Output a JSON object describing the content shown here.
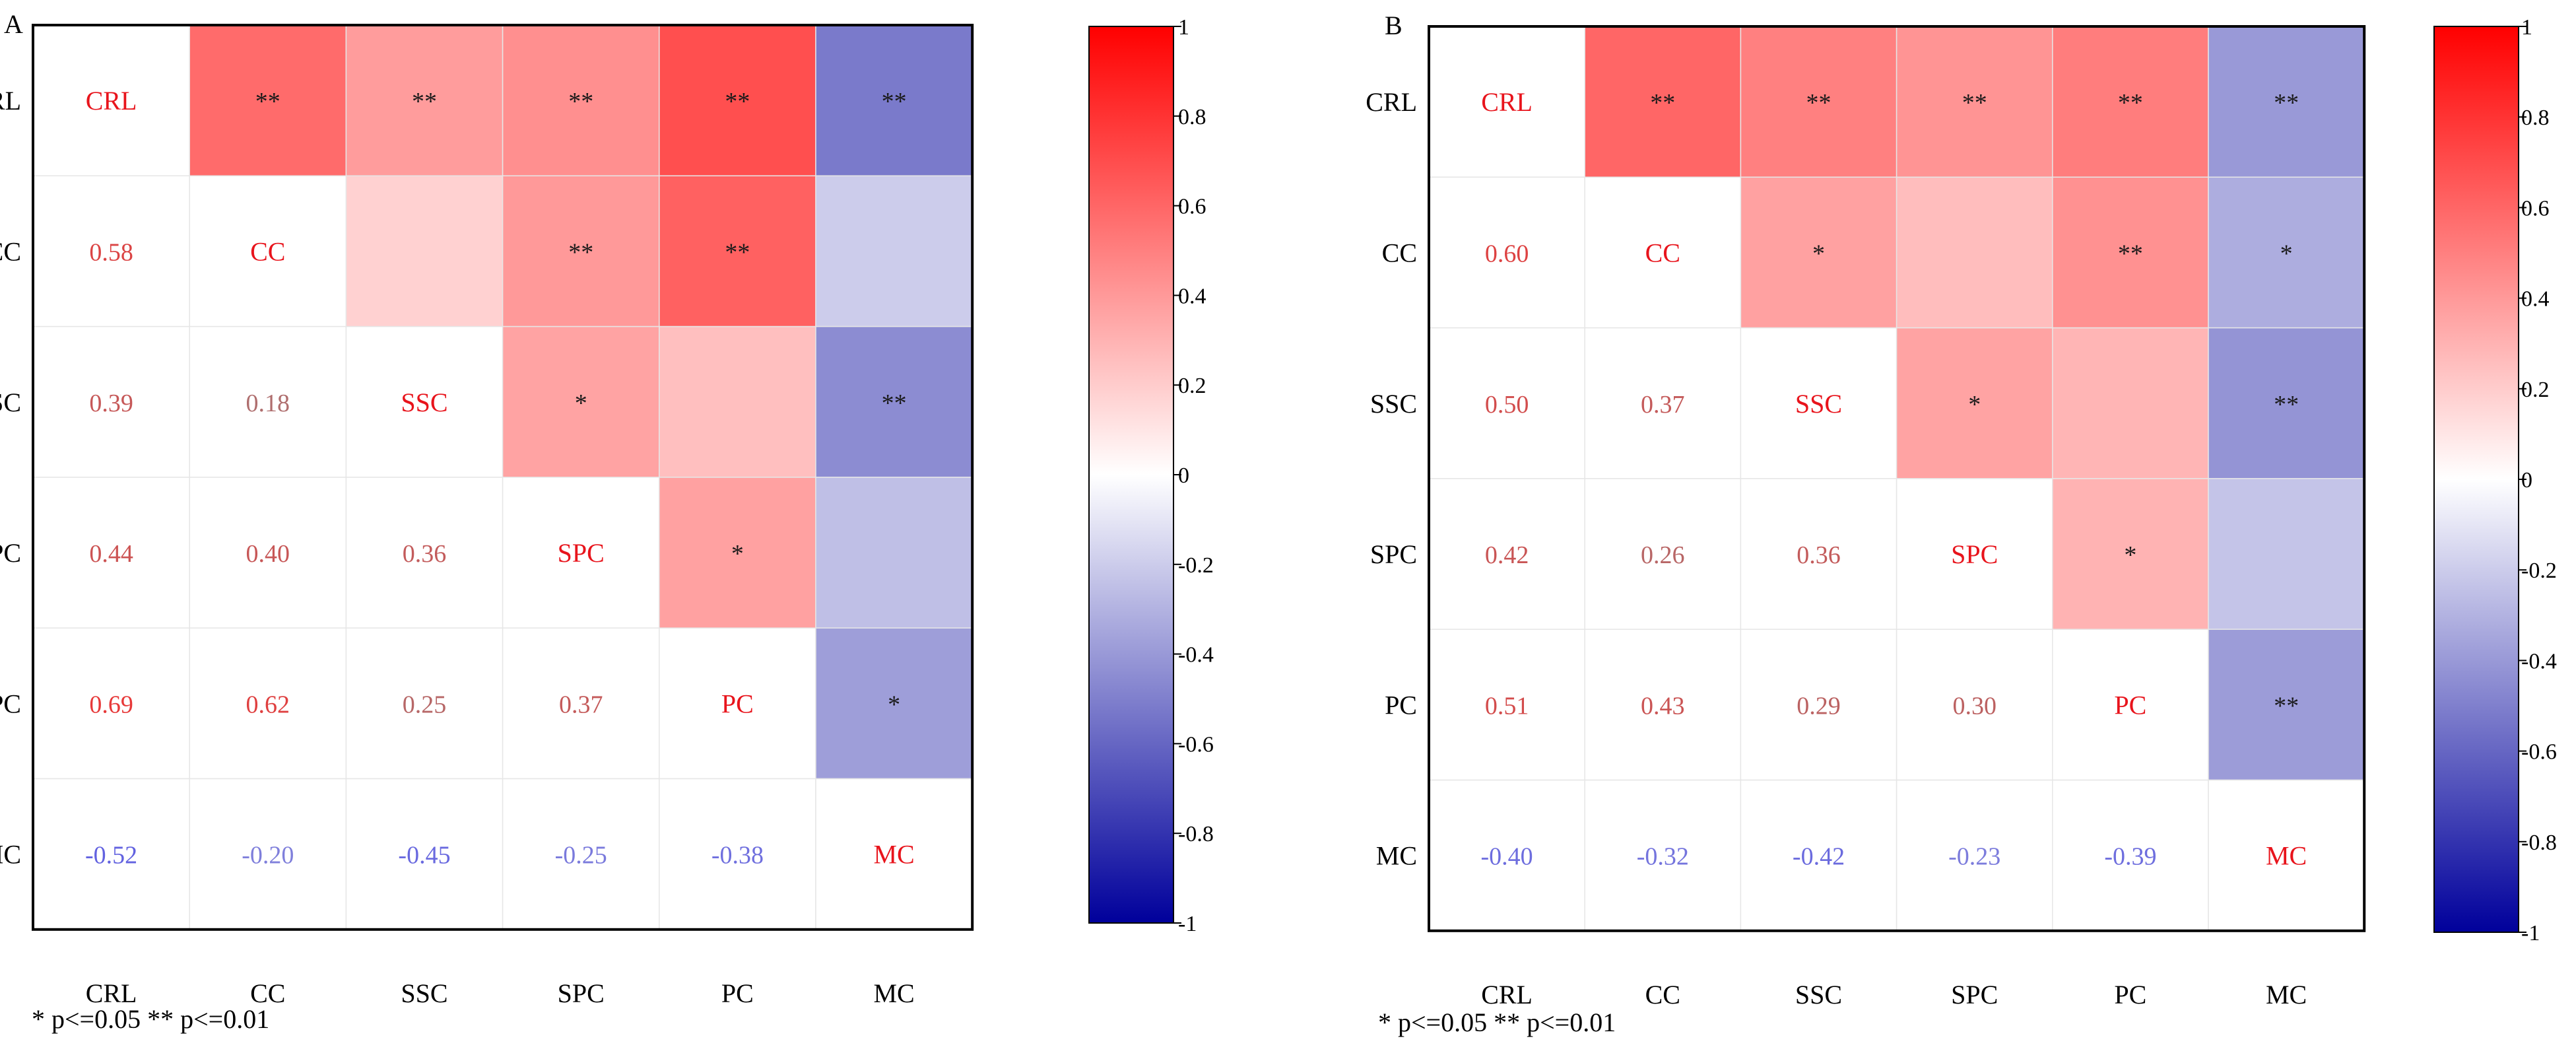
{
  "note": "* p<=0.05  ** p<=0.01",
  "chart_data": [
    {
      "type": "heatmap",
      "panel_label": "A",
      "variables": [
        "CRL",
        "CC",
        "SSC",
        "SPC",
        "PC",
        "MC"
      ],
      "correlations": [
        [
          1.0,
          0.58,
          0.39,
          0.44,
          0.69,
          -0.52
        ],
        [
          0.58,
          1.0,
          0.18,
          0.4,
          0.62,
          -0.2
        ],
        [
          0.39,
          0.18,
          1.0,
          0.36,
          0.25,
          -0.45
        ],
        [
          0.44,
          0.4,
          0.36,
          1.0,
          0.37,
          -0.25
        ],
        [
          0.69,
          0.62,
          0.25,
          0.37,
          1.0,
          -0.38
        ],
        [
          -0.52,
          -0.2,
          -0.45,
          -0.25,
          -0.38,
          1.0
        ]
      ],
      "lower_labels": [
        [
          "0.58"
        ],
        [
          "0.39",
          "0.18"
        ],
        [
          "0.44",
          "0.40",
          "0.36"
        ],
        [
          "0.69",
          "0.62",
          "0.25",
          "0.37"
        ],
        [
          "-0.52",
          "-0.20",
          "-0.45",
          "-0.25",
          "-0.38"
        ]
      ],
      "significance": [
        [
          "",
          "**",
          "**",
          "**",
          "**",
          "**"
        ],
        [
          "",
          "",
          "",
          "**",
          "**",
          ""
        ],
        [
          "",
          "",
          "",
          "*",
          "",
          "**"
        ],
        [
          "",
          "",
          "",
          "",
          "*",
          ""
        ],
        [
          "",
          "",
          "",
          "",
          "",
          "*"
        ],
        [
          "",
          "",
          "",
          "",
          "",
          ""
        ]
      ],
      "colorbar": {
        "range": [
          -1,
          1
        ],
        "ticks": [
          "1",
          "0.8",
          "0.6",
          "0.4",
          "0.2",
          "0",
          "-0.2",
          "-0.4",
          "-0.6",
          "-0.8",
          "-1"
        ],
        "colors": {
          "low": "#00009b",
          "mid": "#ffffff",
          "high": "#ff0000"
        }
      }
    },
    {
      "type": "heatmap",
      "panel_label": "B",
      "variables": [
        "CRL",
        "CC",
        "SSC",
        "SPC",
        "PC",
        "MC"
      ],
      "correlations": [
        [
          1.0,
          0.6,
          0.5,
          0.42,
          0.51,
          -0.4
        ],
        [
          0.6,
          1.0,
          0.37,
          0.26,
          0.43,
          -0.32
        ],
        [
          0.5,
          0.37,
          1.0,
          0.36,
          0.29,
          -0.42
        ],
        [
          0.42,
          0.26,
          0.36,
          1.0,
          0.3,
          -0.23
        ],
        [
          0.51,
          0.43,
          0.29,
          0.3,
          1.0,
          -0.39
        ],
        [
          -0.4,
          -0.32,
          -0.42,
          -0.23,
          -0.39,
          1.0
        ]
      ],
      "lower_labels": [
        [
          "0.60"
        ],
        [
          "0.50",
          "0.37"
        ],
        [
          "0.42",
          "0.26",
          "0.36"
        ],
        [
          "0.51",
          "0.43",
          "0.29",
          "0.30"
        ],
        [
          "-0.40",
          "-0.32",
          "-0.42",
          "-0.23",
          "-0.39"
        ]
      ],
      "significance": [
        [
          "",
          "**",
          "**",
          "**",
          "**",
          "**"
        ],
        [
          "",
          "",
          "*",
          "",
          "**",
          "*"
        ],
        [
          "",
          "",
          "",
          "*",
          "",
          "**"
        ],
        [
          "",
          "",
          "",
          "",
          "*",
          ""
        ],
        [
          "",
          "",
          "",
          "",
          "",
          "**"
        ],
        [
          "",
          "",
          "",
          "",
          "",
          ""
        ]
      ],
      "colorbar": {
        "range": [
          -1,
          1
        ],
        "ticks": [
          "1",
          "0.8",
          "0.6",
          "0.4",
          "0.2",
          "0",
          "-0.2",
          "-0.4",
          "-0.6",
          "-0.8",
          "-1"
        ],
        "colors": {
          "low": "#00009b",
          "mid": "#ffffff",
          "high": "#ff0000"
        }
      }
    }
  ]
}
